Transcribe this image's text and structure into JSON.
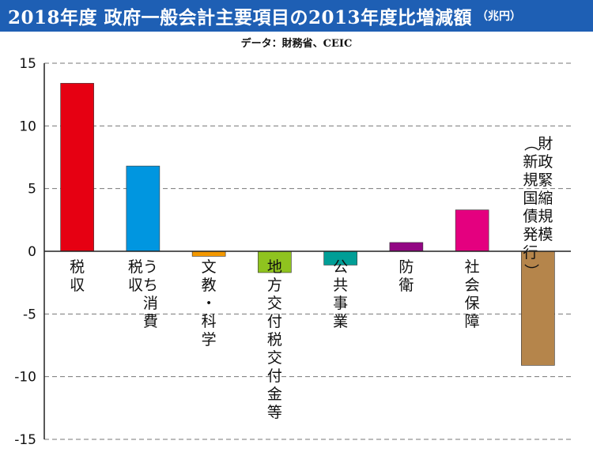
{
  "header": {
    "title": "2018年度 政府一般会計主要項目の2013年度比増減額",
    "unit": "（兆円）",
    "source": "データ：財務省、CEIC"
  },
  "chart_data": {
    "type": "bar",
    "title": "2018年度 政府一般会計主要項目の2013年度比増減額",
    "ylabel": "",
    "xlabel": "",
    "ylim": [
      -15,
      15
    ],
    "yticks": [
      15,
      10,
      5,
      0,
      -5,
      -10,
      -15
    ],
    "grid": true,
    "categories": [
      "税収",
      "うち消費税収",
      "文教・科学",
      "地方交付税交付金等",
      "公共事業",
      "防衛",
      "社会保障",
      "財政緊縮規模（新規国債発行）"
    ],
    "values": [
      13.4,
      6.8,
      -0.4,
      -1.7,
      -1.1,
      0.7,
      3.3,
      -9.1
    ],
    "colors": [
      "#e60012",
      "#0096e0",
      "#f39800",
      "#8fc31f",
      "#009e96",
      "#920783",
      "#e4007f",
      "#b5854b"
    ],
    "label_columns": [
      [
        "税収"
      ],
      [
        "うち消費",
        "税収"
      ],
      [
        "文教・科学"
      ],
      [
        "地方交付税交付金等"
      ],
      [
        "公共事業"
      ],
      [
        "防衛"
      ],
      [
        "社会保障"
      ],
      [
        "財政緊縮規模",
        "（新規国債発行）"
      ]
    ]
  }
}
